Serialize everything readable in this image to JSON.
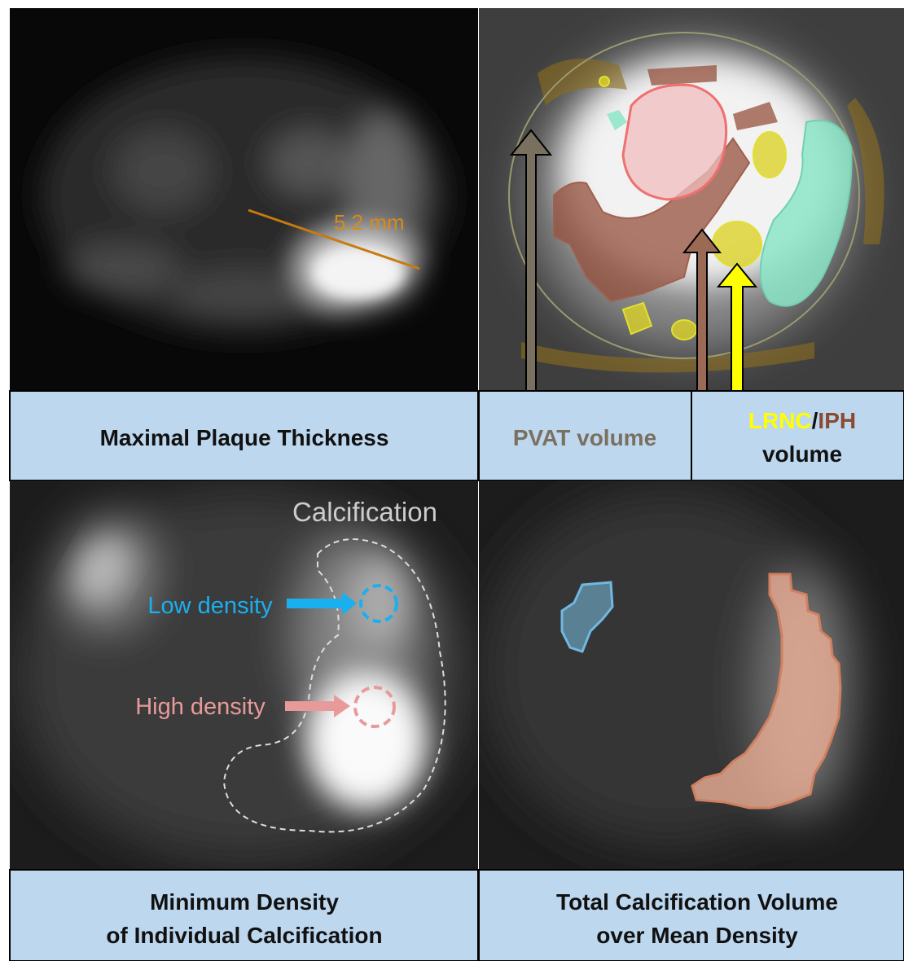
{
  "top_left": {
    "annotation": "5.2 mm",
    "caption": "Maximal Plaque Thickness"
  },
  "top_right": {
    "caption_pvat": "PVAT volume",
    "caption_lrnc": "LRNC",
    "caption_slash": "/",
    "caption_iph": "IPH",
    "caption_volume": "volume"
  },
  "bottom_left": {
    "annotation": "Calcification",
    "low_density": "Low density",
    "high_density": "High density",
    "caption": [
      "Minimum Density",
      "of Individual Calcification"
    ]
  },
  "bottom_right": {
    "caption": [
      "Total Calcification Volume",
      "over Mean Density"
    ]
  }
}
